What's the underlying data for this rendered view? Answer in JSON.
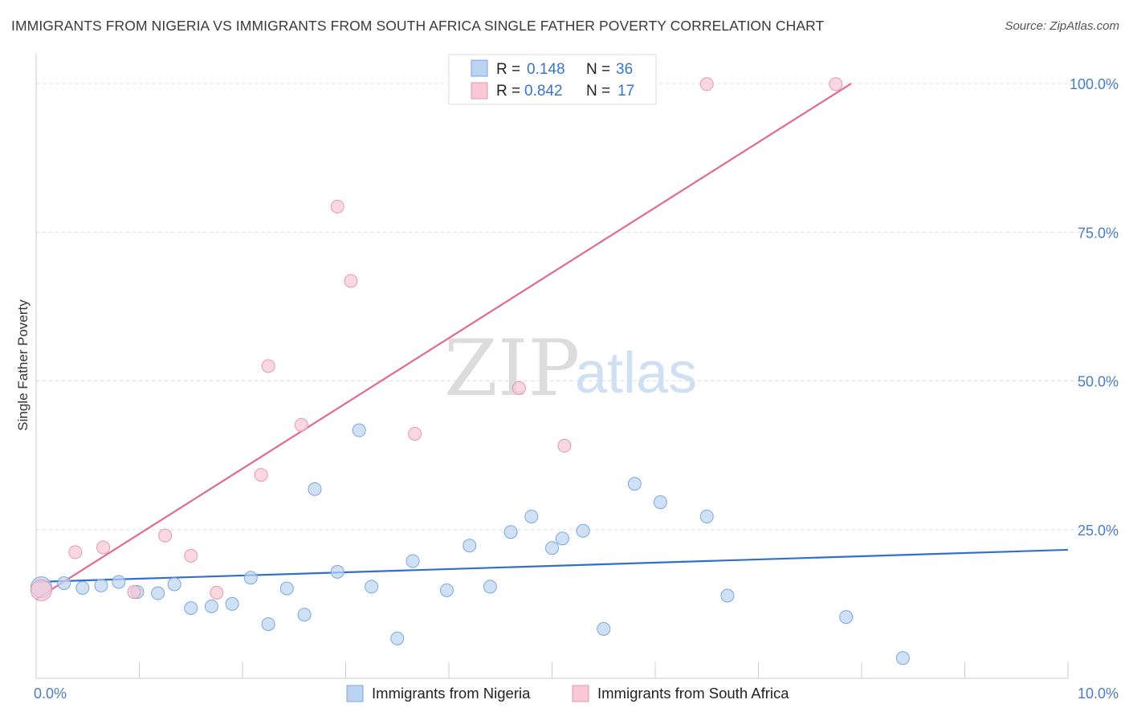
{
  "title": "IMMIGRANTS FROM NIGERIA VS IMMIGRANTS FROM SOUTH AFRICA SINGLE FATHER POVERTY CORRELATION CHART",
  "source": "Source: ZipAtlas.com",
  "watermark": {
    "zip": "ZIP",
    "atlas": "atlas"
  },
  "colors": {
    "nigeria_fill": "#bcd4f2",
    "nigeria_stroke": "#7aa6e0",
    "nigeria_line": "#2f6fd0",
    "sa_fill": "#f8c8d6",
    "sa_stroke": "#e995ae",
    "sa_line": "#e06a94",
    "tick_text": "#4a7cc9",
    "grid": "#dddddd"
  },
  "legend": {
    "rows": [
      {
        "r_label": "R =",
        "r_value": "0.148",
        "n_label": "N =",
        "n_value": "36"
      },
      {
        "r_label": "R =",
        "r_value": "0.842",
        "n_label": "N =",
        "n_value": "17"
      }
    ]
  },
  "chart_data": {
    "type": "scatter",
    "xlabel": "",
    "ylabel": "Single Father Poverty",
    "xlim": [
      0,
      10
    ],
    "ylim": [
      0,
      105
    ],
    "x_tick_labels": [
      {
        "x": 0,
        "label": "0.0%"
      },
      {
        "x": 10,
        "label": "10.0%"
      }
    ],
    "y_tick_labels": [
      {
        "y": 25,
        "label": "25.0%"
      },
      {
        "y": 50,
        "label": "50.0%"
      },
      {
        "y": 75,
        "label": "75.0%"
      },
      {
        "y": 100,
        "label": "100.0%"
      }
    ],
    "legend_position": "top-center",
    "series": [
      {
        "name": "Immigrants from Nigeria",
        "points": [
          [
            0.05,
            15.3
          ],
          [
            0.27,
            16.0
          ],
          [
            0.45,
            15.2
          ],
          [
            0.63,
            15.6
          ],
          [
            0.8,
            16.2
          ],
          [
            0.98,
            14.5
          ],
          [
            1.18,
            14.3
          ],
          [
            1.34,
            15.8
          ],
          [
            1.5,
            11.8
          ],
          [
            1.7,
            12.1
          ],
          [
            1.9,
            12.5
          ],
          [
            2.08,
            16.9
          ],
          [
            2.25,
            9.1
          ],
          [
            2.43,
            15.1
          ],
          [
            2.6,
            10.7
          ],
          [
            2.7,
            31.8
          ],
          [
            2.92,
            17.9
          ],
          [
            3.13,
            41.7
          ],
          [
            3.25,
            15.4
          ],
          [
            3.5,
            6.7
          ],
          [
            3.65,
            19.7
          ],
          [
            3.98,
            14.8
          ],
          [
            4.2,
            22.3
          ],
          [
            4.4,
            15.4
          ],
          [
            4.6,
            24.6
          ],
          [
            4.8,
            27.2
          ],
          [
            5.0,
            21.9
          ],
          [
            5.1,
            23.5
          ],
          [
            5.3,
            24.8
          ],
          [
            5.5,
            8.3
          ],
          [
            5.8,
            32.7
          ],
          [
            6.05,
            29.6
          ],
          [
            6.5,
            27.2
          ],
          [
            6.7,
            13.9
          ],
          [
            7.85,
            10.3
          ],
          [
            8.4,
            3.4
          ]
        ]
      },
      {
        "name": "Immigrants from South Africa",
        "points": [
          [
            0.05,
            14.8
          ],
          [
            0.38,
            21.2
          ],
          [
            0.65,
            22.0
          ],
          [
            0.95,
            14.5
          ],
          [
            1.25,
            24.0
          ],
          [
            1.5,
            20.6
          ],
          [
            1.75,
            14.4
          ],
          [
            2.18,
            34.2
          ],
          [
            2.25,
            52.5
          ],
          [
            2.57,
            42.6
          ],
          [
            2.92,
            79.3
          ],
          [
            3.05,
            66.8
          ],
          [
            3.67,
            41.1
          ],
          [
            4.68,
            48.8
          ],
          [
            5.12,
            39.1
          ],
          [
            6.5,
            99.9
          ],
          [
            7.75,
            99.9
          ]
        ]
      }
    ],
    "trend_lines": [
      {
        "name": "Immigrants from Nigeria",
        "x": [
          0,
          10
        ],
        "y": [
          16.2,
          21.6
        ]
      },
      {
        "name": "Immigrants from South Africa",
        "x": [
          0,
          7.9
        ],
        "y": [
          13.3,
          100.0
        ]
      }
    ]
  }
}
